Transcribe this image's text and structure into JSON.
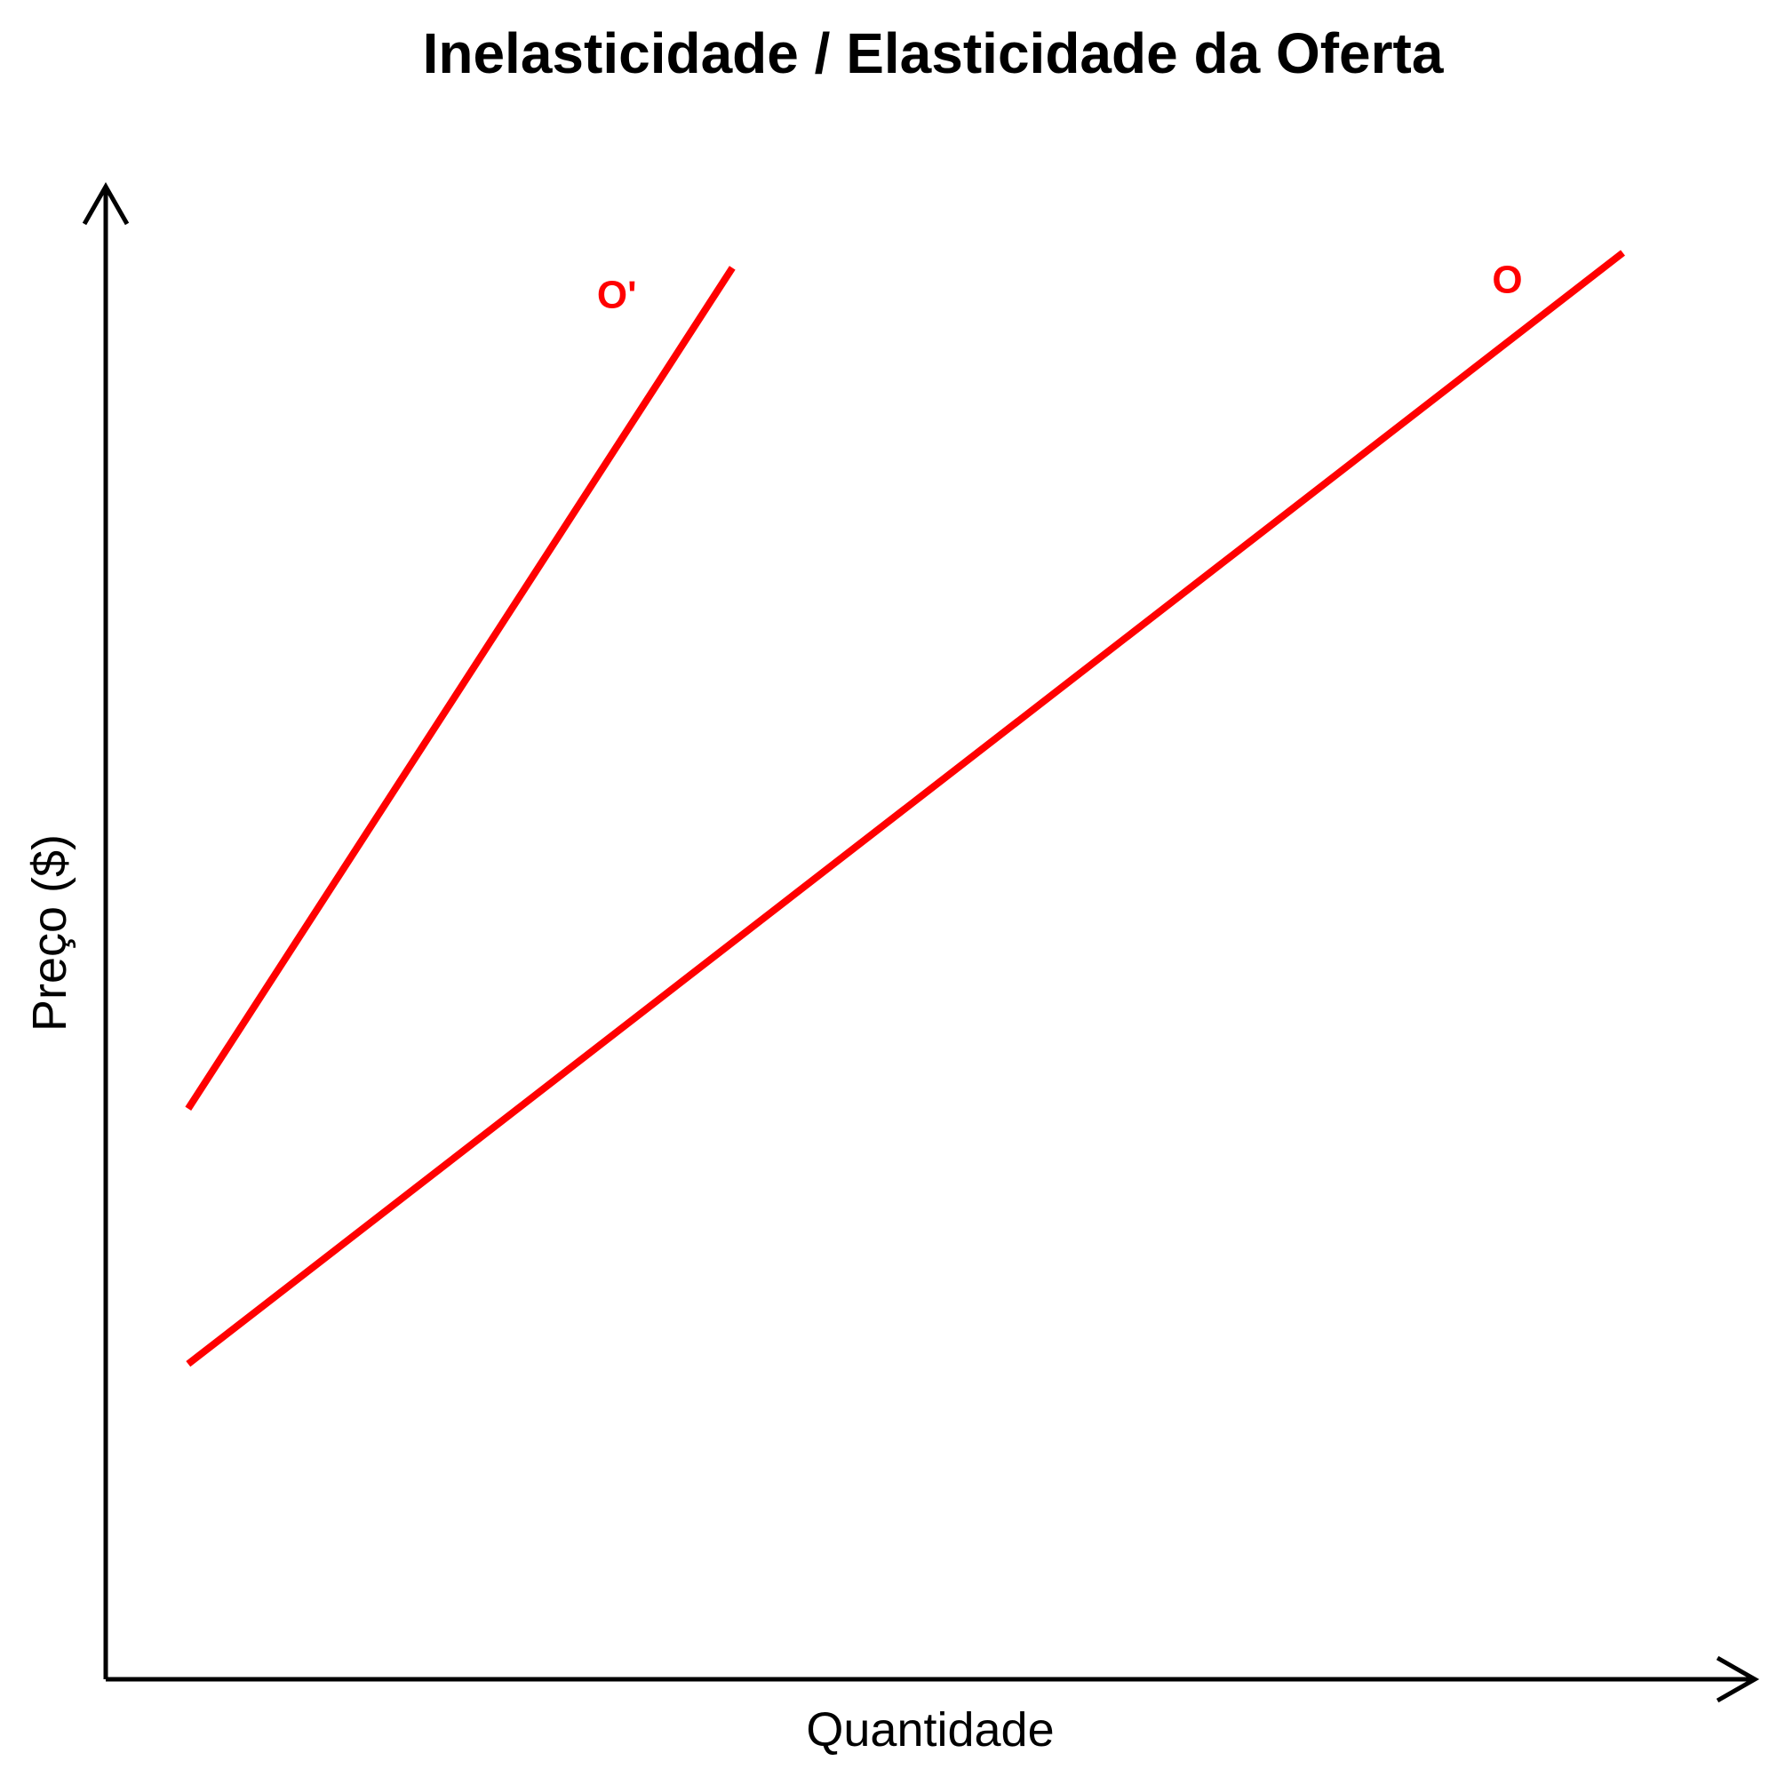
{
  "chart_data": {
    "type": "line",
    "title": "Inelasticidade / Elasticidade da Oferta",
    "xlabel": "Quantidade",
    "ylabel": "Preço ($)",
    "xlim": [
      0,
      100
    ],
    "ylim": [
      0,
      100
    ],
    "grid": false,
    "axis_color": "#000000",
    "series": [
      {
        "name": "O'",
        "color": "#ff0000",
        "points": [
          [
            5,
            38
          ],
          [
            38,
            94
          ]
        ]
      },
      {
        "name": "O",
        "color": "#ff0000",
        "points": [
          [
            5,
            21
          ],
          [
            92,
            95
          ]
        ]
      }
    ]
  }
}
